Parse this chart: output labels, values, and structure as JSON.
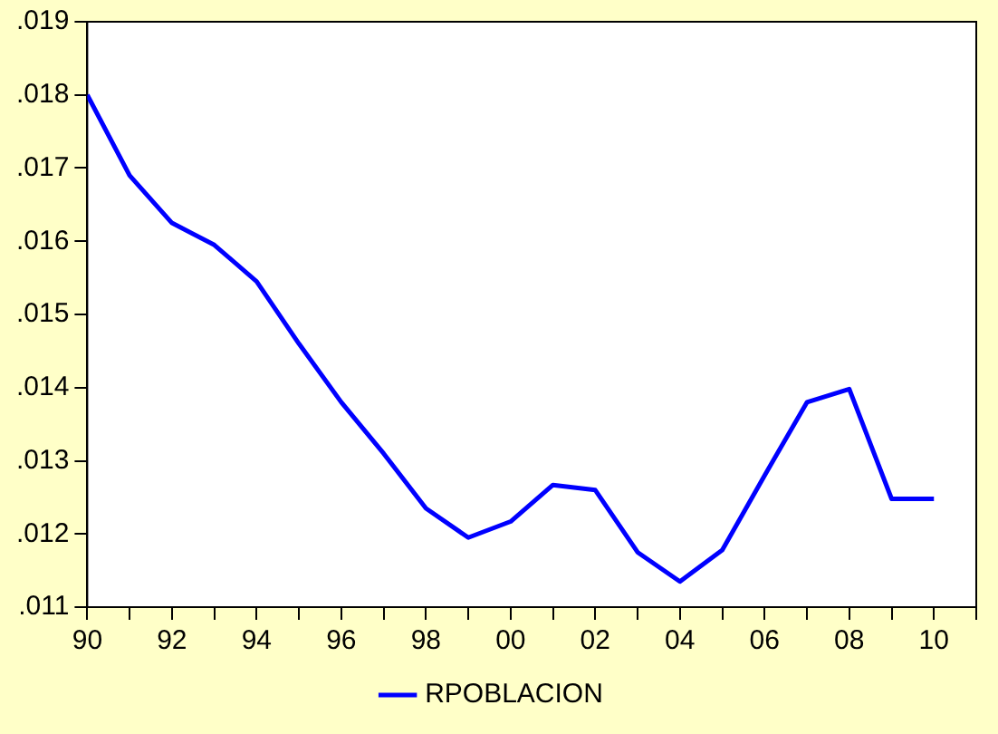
{
  "chart_data": {
    "type": "line",
    "x": [
      1990,
      1991,
      1992,
      1993,
      1994,
      1995,
      1996,
      1997,
      1998,
      1999,
      2000,
      2001,
      2002,
      2003,
      2004,
      2005,
      2006,
      2007,
      2008,
      2009,
      2010
    ],
    "series": [
      {
        "name": "RPOBLACION",
        "color": "#0000ff",
        "values": [
          0.018,
          0.0169,
          0.01625,
          0.01595,
          0.01545,
          0.0146,
          0.0138,
          0.0131,
          0.01235,
          0.01195,
          0.01217,
          0.01267,
          0.0126,
          0.01175,
          0.01135,
          0.01178,
          0.0128,
          0.0138,
          0.01398,
          0.01248,
          0.01248
        ]
      }
    ],
    "xlim": [
      1990,
      2011
    ],
    "xticks": [
      {
        "value": 1990,
        "label": "90"
      },
      {
        "value": 1991,
        "label": null
      },
      {
        "value": 1992,
        "label": "92"
      },
      {
        "value": 1993,
        "label": null
      },
      {
        "value": 1994,
        "label": "94"
      },
      {
        "value": 1995,
        "label": null
      },
      {
        "value": 1996,
        "label": "96"
      },
      {
        "value": 1997,
        "label": null
      },
      {
        "value": 1998,
        "label": "98"
      },
      {
        "value": 1999,
        "label": null
      },
      {
        "value": 2000,
        "label": "00"
      },
      {
        "value": 2001,
        "label": null
      },
      {
        "value": 2002,
        "label": "02"
      },
      {
        "value": 2003,
        "label": null
      },
      {
        "value": 2004,
        "label": "04"
      },
      {
        "value": 2005,
        "label": null
      },
      {
        "value": 2006,
        "label": "06"
      },
      {
        "value": 2007,
        "label": null
      },
      {
        "value": 2008,
        "label": "08"
      },
      {
        "value": 2009,
        "label": null
      },
      {
        "value": 2010,
        "label": "10"
      },
      {
        "value": 2011,
        "label": null
      }
    ],
    "ylim": [
      0.011,
      0.019
    ],
    "yticks": [
      {
        "value": 0.011,
        "label": ".011"
      },
      {
        "value": 0.012,
        "label": ".012"
      },
      {
        "value": 0.013,
        "label": ".013"
      },
      {
        "value": 0.014,
        "label": ".014"
      },
      {
        "value": 0.015,
        "label": ".015"
      },
      {
        "value": 0.016,
        "label": ".016"
      },
      {
        "value": 0.017,
        "label": ".017"
      },
      {
        "value": 0.018,
        "label": ".018"
      },
      {
        "value": 0.019,
        "label": ".019"
      }
    ],
    "grid": false,
    "legend": "bottom",
    "marker": "none",
    "line_style": "solid"
  }
}
